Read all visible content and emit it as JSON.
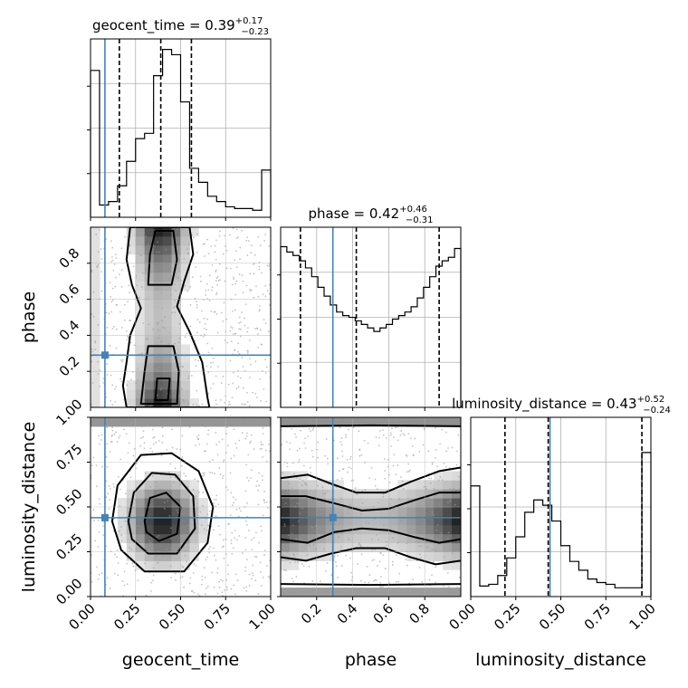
{
  "chart_data": {
    "type": "corner",
    "parameters": [
      "geocent_time",
      "phase",
      "luminosity_distance"
    ],
    "truth_color": "#4682b4",
    "truths": {
      "geocent_time": 0.08,
      "phase": 0.29,
      "luminosity_distance": 0.44
    },
    "diagonal": [
      {
        "param": "geocent_time",
        "title_main": "geocent_time = 0.39",
        "title_sup": "+0.17",
        "title_sub": "−0.23",
        "range": [
          0,
          1
        ],
        "quantiles": [
          0.16,
          0.39,
          0.56
        ],
        "hist": [
          0.84,
          0.07,
          0.09,
          0.18,
          0.32,
          0.45,
          0.48,
          0.81,
          0.96,
          0.93,
          0.66,
          0.28,
          0.2,
          0.12,
          0.09,
          0.06,
          0.05,
          0.05,
          0.04,
          0.27
        ]
      },
      {
        "param": "phase",
        "title_main": "phase = 0.42",
        "title_sup": "+0.46",
        "title_sub": "−0.31",
        "range": [
          0,
          1
        ],
        "quantiles": [
          0.11,
          0.42,
          0.88
        ],
        "hist": [
          0.91,
          0.88,
          0.86,
          0.83,
          0.79,
          0.74,
          0.68,
          0.63,
          0.58,
          0.54,
          0.52,
          0.51,
          0.49,
          0.47,
          0.45,
          0.43,
          0.45,
          0.47,
          0.5,
          0.52,
          0.54,
          0.57,
          0.62,
          0.68,
          0.74,
          0.8,
          0.83,
          0.85,
          0.9
        ]
      },
      {
        "param": "luminosity_distance",
        "title_main": "luminosity_distance = 0.43",
        "title_sup": "+0.52",
        "title_sub": "−0.24",
        "range": [
          0,
          1
        ],
        "quantiles": [
          0.19,
          0.43,
          0.95
        ],
        "hist": [
          0.63,
          0.06,
          0.07,
          0.12,
          0.22,
          0.34,
          0.48,
          0.55,
          0.52,
          0.43,
          0.29,
          0.2,
          0.15,
          0.1,
          0.08,
          0.07,
          0.05,
          0.05,
          0.05,
          0.82
        ]
      }
    ],
    "pairs": [
      {
        "x": "geocent_time",
        "y": "phase"
      },
      {
        "x": "geocent_time",
        "y": "luminosity_distance"
      },
      {
        "x": "phase",
        "y": "luminosity_distance"
      }
    ],
    "axes": {
      "geocent_time": {
        "ticks": [
          0.0,
          0.25,
          0.5,
          0.75,
          1.0
        ],
        "tick_labels": [
          "0.00",
          "0.25",
          "0.50",
          "0.75",
          "1.00"
        ],
        "label": "geocent_time"
      },
      "phase": {
        "ticks": [
          0.2,
          0.4,
          0.6,
          0.8
        ],
        "tick_labels": [
          "0.2",
          "0.4",
          "0.6",
          "0.8"
        ],
        "label": "phase"
      },
      "luminosity_distance": {
        "ticks": [
          0.0,
          0.25,
          0.5,
          0.75,
          1.0
        ],
        "tick_labels": [
          "0.00",
          "0.25",
          "0.50",
          "0.75",
          "1.00"
        ],
        "label": "luminosity_distance"
      }
    },
    "grid": true
  }
}
